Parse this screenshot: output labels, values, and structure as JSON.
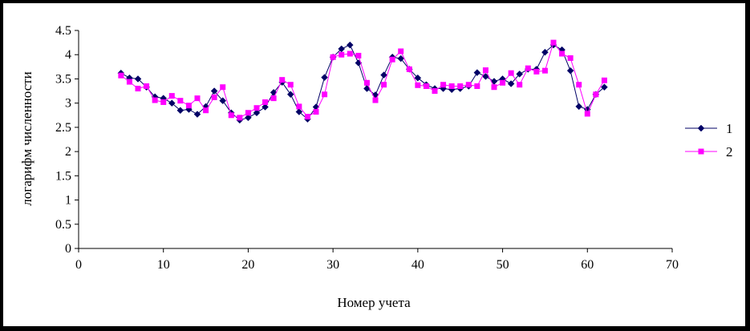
{
  "chart_data": {
    "type": "line",
    "title": "",
    "xlabel": "Номер учета",
    "ylabel": "логарифм численности",
    "xlim": [
      0,
      70
    ],
    "ylim": [
      0,
      4.5
    ],
    "x_ticks": [
      "0",
      "10",
      "20",
      "30",
      "40",
      "50",
      "60",
      "70"
    ],
    "y_ticks": [
      "0",
      "0.5",
      "1",
      "1.5",
      "2",
      "2.5",
      "3",
      "3.5",
      "4",
      "4.5"
    ],
    "grid": false,
    "legend_position": "right",
    "x": [
      5,
      6,
      7,
      8,
      9,
      10,
      11,
      12,
      13,
      14,
      15,
      16,
      17,
      18,
      19,
      20,
      21,
      22,
      23,
      24,
      25,
      26,
      27,
      28,
      29,
      30,
      31,
      32,
      33,
      34,
      35,
      36,
      37,
      38,
      39,
      40,
      41,
      42,
      43,
      44,
      45,
      46,
      47,
      48,
      49,
      50,
      51,
      52,
      53,
      54,
      55,
      56,
      57,
      58,
      59,
      60,
      61,
      62
    ],
    "series": [
      {
        "name": "1",
        "color": "#000066",
        "marker": "diamond",
        "values": [
          3.62,
          3.52,
          3.5,
          3.33,
          3.13,
          3.1,
          3.0,
          2.85,
          2.87,
          2.77,
          2.93,
          3.25,
          3.05,
          2.8,
          2.65,
          2.7,
          2.8,
          2.92,
          3.22,
          3.43,
          3.18,
          2.82,
          2.67,
          2.92,
          3.53,
          3.95,
          4.12,
          4.2,
          3.83,
          3.3,
          3.17,
          3.58,
          3.95,
          3.92,
          3.7,
          3.52,
          3.38,
          3.3,
          3.3,
          3.28,
          3.3,
          3.35,
          3.63,
          3.55,
          3.45,
          3.5,
          3.4,
          3.6,
          3.7,
          3.7,
          4.05,
          4.2,
          4.1,
          3.67,
          2.93,
          2.87,
          3.18,
          3.33
        ]
      },
      {
        "name": "2",
        "color": "#ff00ff",
        "marker": "square",
        "values": [
          3.57,
          3.44,
          3.3,
          3.35,
          3.06,
          3.02,
          3.15,
          3.05,
          2.95,
          3.1,
          2.85,
          3.12,
          3.33,
          2.75,
          2.7,
          2.8,
          2.9,
          3.02,
          3.1,
          3.48,
          3.38,
          2.93,
          2.72,
          2.82,
          3.18,
          3.95,
          4.0,
          4.02,
          3.98,
          3.42,
          3.06,
          3.38,
          3.9,
          4.07,
          3.7,
          3.37,
          3.35,
          3.25,
          3.38,
          3.35,
          3.35,
          3.38,
          3.35,
          3.68,
          3.33,
          3.42,
          3.62,
          3.38,
          3.72,
          3.65,
          3.67,
          4.25,
          4.02,
          3.93,
          3.38,
          2.78,
          3.18,
          3.47
        ]
      }
    ]
  }
}
